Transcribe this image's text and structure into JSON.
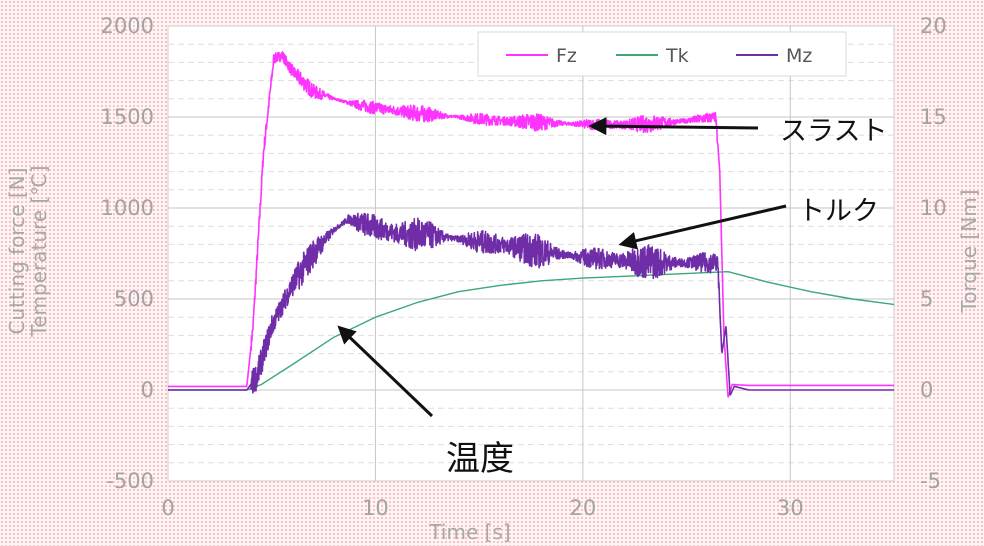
{
  "chart_data": {
    "type": "line",
    "xlabel": "Time [s]",
    "ylabel_left": [
      "Cutting force [N]",
      "Temperature [℃]"
    ],
    "ylabel_right": "Torque [Nm]",
    "xlim": [
      0,
      35
    ],
    "ylim_left": [
      -500,
      2000
    ],
    "ylim_right": [
      -5,
      20
    ],
    "x_ticks": [
      "0",
      "10",
      "20",
      "30"
    ],
    "y_left_ticks": [
      "2000",
      "1500",
      "1000",
      "500",
      "0",
      "-500"
    ],
    "y_right_ticks": [
      "20",
      "15",
      "10",
      "5",
      "0",
      "-5"
    ],
    "grid": true,
    "legend_position": "top-right",
    "series": [
      {
        "name": "Fz",
        "axis": "left",
        "color": "#ff33ff",
        "x": [
          0,
          3.8,
          4.1,
          4.6,
          5.1,
          5.5,
          6,
          7,
          8,
          9,
          10,
          11,
          12,
          13,
          14,
          15,
          16,
          17,
          18,
          19,
          20,
          21,
          22,
          23,
          24,
          25,
          26.4,
          26.6,
          26.8,
          27,
          27.2,
          28,
          30,
          32,
          35
        ],
        "values": [
          20,
          20,
          350,
          1300,
          1820,
          1840,
          1750,
          1640,
          1600,
          1570,
          1550,
          1535,
          1520,
          1510,
          1500,
          1490,
          1480,
          1475,
          1470,
          1465,
          1460,
          1460,
          1458,
          1462,
          1470,
          1480,
          1500,
          1200,
          300,
          -40,
          30,
          25,
          25,
          25,
          25
        ],
        "noise": 50
      },
      {
        "name": "Tk",
        "axis": "left",
        "color": "#3aa977",
        "x": [
          0,
          3.8,
          4.5,
          6,
          8,
          10,
          12,
          14,
          16,
          18,
          20,
          22,
          24,
          26,
          27,
          29,
          31,
          33,
          35
        ],
        "values": [
          0,
          0,
          30,
          140,
          290,
          400,
          480,
          540,
          575,
          600,
          615,
          625,
          635,
          645,
          650,
          590,
          540,
          500,
          470
        ],
        "noise": 0
      },
      {
        "name": "Mz",
        "axis": "right",
        "color": "#6f2da8",
        "x": [
          0,
          3.8,
          4.3,
          5,
          6,
          7,
          8,
          8.7,
          9.5,
          11,
          12.5,
          14,
          16,
          18,
          20,
          22,
          24,
          26.5,
          26.7,
          26.9,
          27.1,
          27.3,
          28,
          30,
          35
        ],
        "values": [
          0,
          0,
          0.8,
          3.5,
          5.8,
          7.5,
          8.8,
          9.4,
          9.1,
          8.6,
          8.5,
          8.3,
          8.0,
          7.6,
          7.3,
          7.1,
          7.0,
          7.0,
          2.0,
          3.5,
          -0.3,
          0.2,
          0,
          0,
          0
        ],
        "noise": 1.0
      }
    ],
    "annotations": [
      {
        "text": "スラスト",
        "series": "Fz"
      },
      {
        "text": "トルク",
        "series": "Mz"
      },
      {
        "text": "温度",
        "series": "Tk"
      }
    ]
  }
}
